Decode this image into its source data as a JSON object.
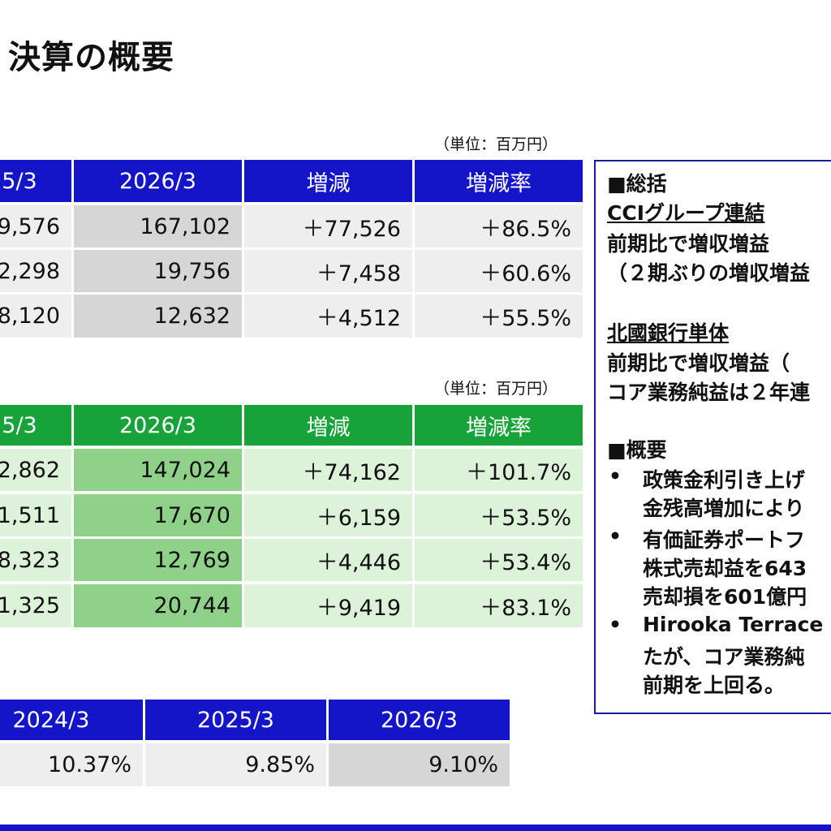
{
  "page_title": "決算の概要",
  "table1": {
    "unit": "（単位：百万円）",
    "headers": [
      "5/3",
      "2026/3",
      "増減",
      "増減率"
    ],
    "rows": [
      [
        "9,576",
        "167,102",
        "＋77,526",
        "＋86.5%"
      ],
      [
        "2,298",
        "19,756",
        "＋7,458",
        "＋60.6%"
      ],
      [
        "8,120",
        "12,632",
        "＋4,512",
        "＋55.5%"
      ]
    ]
  },
  "table2": {
    "unit": "（単位：百万円）",
    "headers": [
      "5/3",
      "2026/3",
      "増減",
      "増減率"
    ],
    "rows": [
      [
        "2,862",
        "147,024",
        "＋74,162",
        "＋101.7%"
      ],
      [
        "1,511",
        "17,670",
        "＋6,159",
        "＋53.5%"
      ],
      [
        "8,323",
        "12,769",
        "＋4,446",
        "＋53.4%"
      ],
      [
        "1,325",
        "20,744",
        "＋9,419",
        "＋83.1%"
      ]
    ]
  },
  "table3": {
    "headers": [
      "2024/3",
      "2025/3",
      "2026/3"
    ],
    "values": [
      "10.37%",
      "9.85%",
      "9.10%"
    ]
  },
  "summary_panel": {
    "heading_summary": "■総括",
    "group_title": "CCIグループ連結",
    "group_line1": "前期比で増収増益",
    "group_line2": "（２期ぶりの増収増益",
    "bank_title": "北國銀行単体",
    "bank_line1": "前期比で増収増益（",
    "bank_line2": "コア業務純益は２年連",
    "heading_overview": "■概要",
    "bullets": [
      {
        "marker": "•",
        "lines": [
          "政策金利引き上げ",
          "金残高増加により"
        ]
      },
      {
        "marker": "•",
        "lines": [
          "有価証券ポートフ",
          "株式売却益を643",
          "売却損を601億円"
        ]
      },
      {
        "marker": "•",
        "lines": [
          "Hirooka Terrace",
          "たが、コア業務純",
          "前期を上回る。"
        ]
      }
    ]
  },
  "colors": {
    "header_blue": "#1414c8",
    "header_green": "#18a23a",
    "light_gray": "#eeeeee",
    "dark_gray": "#d6d6d6",
    "light_green": "#dcf2d9",
    "mid_green": "#8fd189",
    "panel_border": "#1a1a9a"
  }
}
